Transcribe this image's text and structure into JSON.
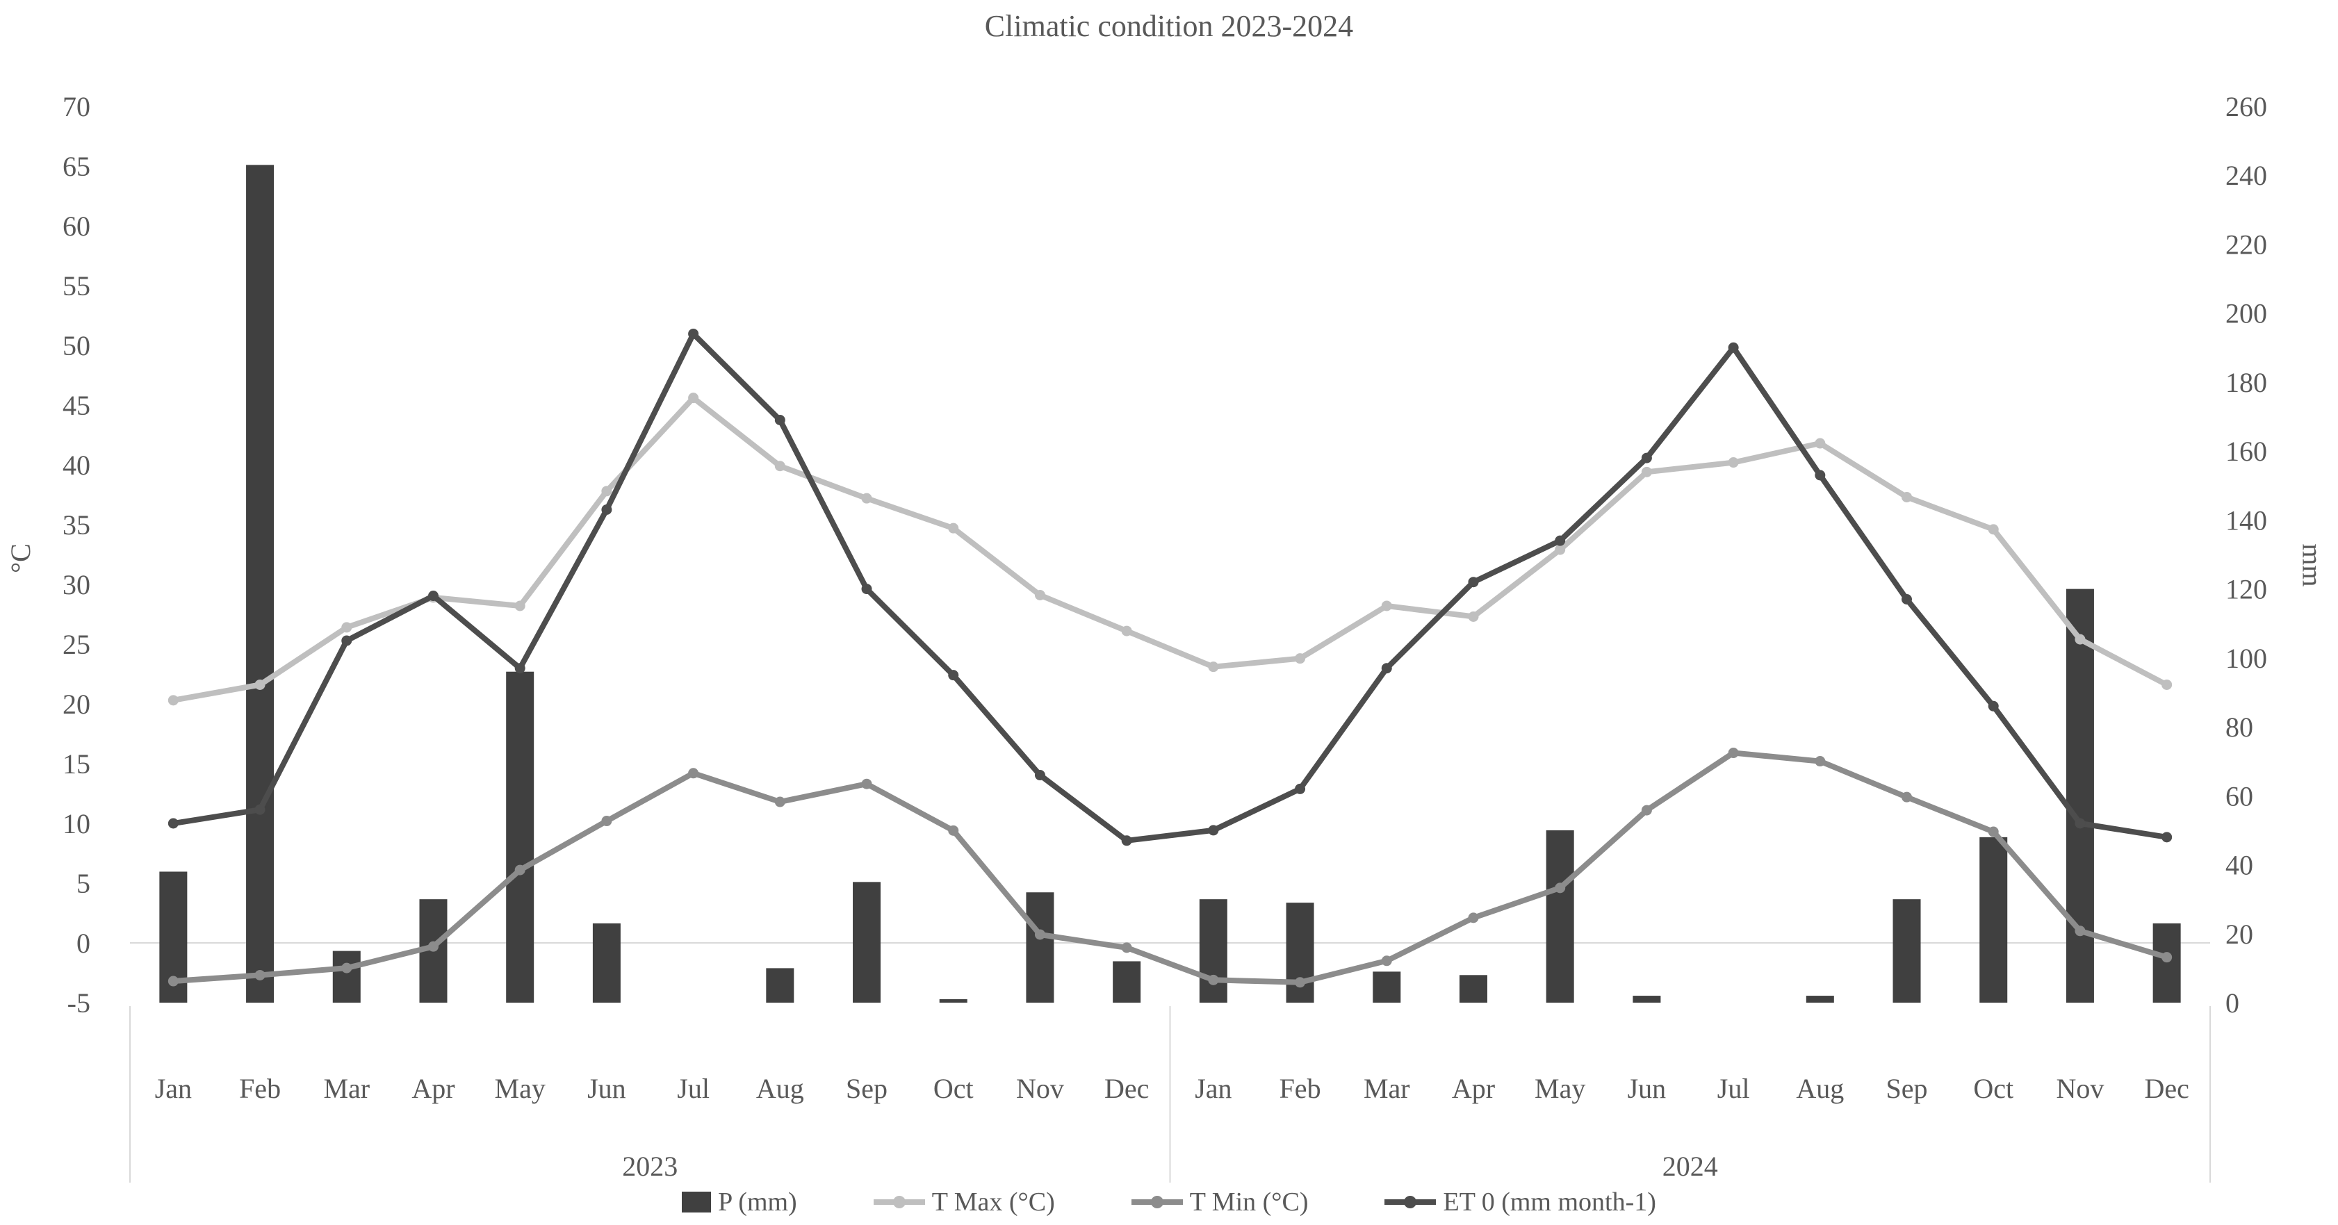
{
  "chart_data": {
    "type": "bar+line combo",
    "title": "Climatic condition 2023-2024",
    "categories": [
      "Jan",
      "Feb",
      "Mar",
      "Apr",
      "May",
      "Jun",
      "Jul",
      "Aug",
      "Sep",
      "Oct",
      "Nov",
      "Dec",
      "Jan",
      "Feb",
      "Mar",
      "Apr",
      "May",
      "Jun",
      "Jul",
      "Aug",
      "Sep",
      "Oct",
      "Nov",
      "Dec"
    ],
    "year_groups": [
      {
        "label": "2023",
        "span": 12
      },
      {
        "label": "2024",
        "span": 12
      }
    ],
    "left_axis": {
      "label": "°C",
      "min": -5,
      "max": 70,
      "ticks": [
        70,
        65,
        60,
        55,
        50,
        45,
        40,
        35,
        30,
        25,
        20,
        15,
        10,
        5,
        0,
        -5
      ]
    },
    "right_axis": {
      "label": "mm",
      "min": 0,
      "max": 260,
      "ticks": [
        260,
        240,
        220,
        200,
        180,
        160,
        140,
        120,
        100,
        80,
        60,
        40,
        20,
        0
      ]
    },
    "gridline_at_left_value": 0,
    "legend_position": "bottom",
    "series": [
      {
        "name": "P (mm)",
        "type": "bar",
        "axis": "right",
        "color": "#404040",
        "values": [
          38,
          243,
          15,
          30,
          96,
          23,
          0,
          10,
          35,
          1,
          32,
          12,
          30,
          29,
          9,
          8,
          50,
          2,
          0,
          2,
          30,
          48,
          120,
          23
        ]
      },
      {
        "name": "T Max (°C)",
        "type": "line",
        "axis": "left",
        "color": "#bfbfbf",
        "values": [
          20.3,
          21.6,
          26.4,
          28.9,
          28.2,
          37.8,
          45.6,
          39.9,
          37.2,
          34.7,
          29.1,
          26.1,
          23.1,
          23.8,
          28.2,
          27.3,
          32.9,
          39.4,
          40.2,
          41.8,
          37.3,
          34.6,
          25.4,
          21.6
        ]
      },
      {
        "name": "T Min (°C)",
        "type": "line",
        "axis": "left",
        "color": "#8c8c8c",
        "values": [
          -3.2,
          -2.7,
          -2.1,
          -0.3,
          6.1,
          10.2,
          14.2,
          11.8,
          13.3,
          9.4,
          0.7,
          -0.4,
          -3.1,
          -3.3,
          -1.5,
          2.1,
          4.6,
          11.1,
          15.9,
          15.2,
          12.2,
          9.3,
          1.0,
          -1.2
        ]
      },
      {
        "name": "ET 0 (mm month-1)",
        "type": "line",
        "axis": "right",
        "color": "#4d4d4d",
        "values": [
          52,
          56,
          105,
          118,
          97,
          143,
          194,
          169,
          120,
          95,
          66,
          47,
          50,
          62,
          97,
          122,
          134,
          158,
          190,
          153,
          117,
          86,
          52,
          48
        ]
      }
    ],
    "colors": {
      "text": "#595959",
      "gridline": "#d9d9d9"
    }
  }
}
